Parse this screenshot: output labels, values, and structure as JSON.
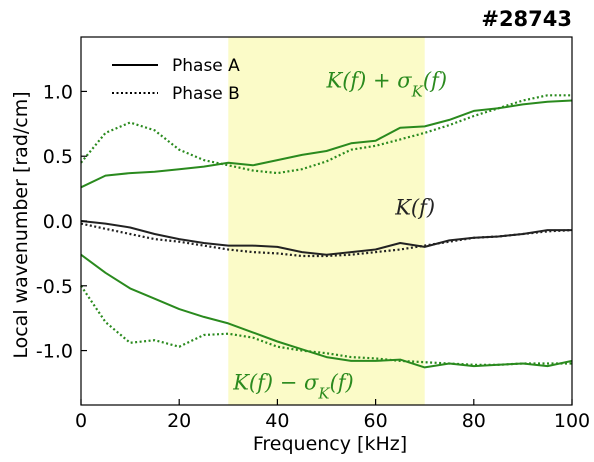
{
  "chart_data": {
    "type": "line",
    "title": "#28743",
    "xlabel": "Frequency [kHz]",
    "ylabel": "Local wavenumber [rad/cm]",
    "xlim": [
      0,
      100
    ],
    "ylim": [
      -1.42,
      1.42
    ],
    "xticks": [
      0,
      20,
      40,
      60,
      80,
      100
    ],
    "xtick_labels": [
      "0",
      "20",
      "40",
      "60",
      "80",
      "100"
    ],
    "yticks": [
      1.0,
      0.5,
      0.0,
      -0.5,
      -1.0
    ],
    "ytick_labels": [
      "1.0",
      "0.5",
      "0.0",
      "-0.5",
      "-1.0"
    ],
    "grid": false,
    "legend_position": "top-left",
    "legend": [
      {
        "label": "Phase A",
        "style": "solid"
      },
      {
        "label": "Phase B",
        "style": "dotted"
      }
    ],
    "highlight_band": {
      "x_start": 30,
      "x_end": 70,
      "color": "#fbfbc8"
    },
    "annotations": [
      {
        "text": "K(f) + σK(f)",
        "color": "#2a8a1e",
        "at_x": 50,
        "at_y": 1.03
      },
      {
        "text": "K(f)",
        "color": "#222222",
        "at_x": 64,
        "at_y": 0.05
      },
      {
        "text": "K(f) − σK(f)",
        "color": "#2a8a1e",
        "at_x": 31,
        "at_y": -1.3
      }
    ],
    "x": [
      0,
      5,
      10,
      15,
      20,
      25,
      30,
      35,
      40,
      45,
      50,
      55,
      60,
      65,
      70,
      75,
      80,
      85,
      90,
      95,
      100
    ],
    "series": [
      {
        "label_ref": "K(f)",
        "phase": "A",
        "color": "#222222",
        "style": "solid",
        "values": [
          0.0,
          -0.02,
          -0.05,
          -0.1,
          -0.14,
          -0.17,
          -0.19,
          -0.19,
          -0.2,
          -0.24,
          -0.26,
          -0.24,
          -0.22,
          -0.17,
          -0.2,
          -0.15,
          -0.13,
          -0.12,
          -0.1,
          -0.07,
          -0.07
        ]
      },
      {
        "label_ref": "K(f)",
        "phase": "B",
        "color": "#222222",
        "style": "dotted",
        "values": [
          -0.02,
          -0.06,
          -0.1,
          -0.14,
          -0.16,
          -0.19,
          -0.22,
          -0.24,
          -0.25,
          -0.27,
          -0.27,
          -0.26,
          -0.24,
          -0.22,
          -0.19,
          -0.16,
          -0.13,
          -0.12,
          -0.1,
          -0.08,
          -0.07
        ]
      },
      {
        "label_ref": "K(f) + σK(f)",
        "phase": "A",
        "color": "#2a8a1e",
        "style": "solid",
        "values": [
          0.26,
          0.35,
          0.37,
          0.38,
          0.4,
          0.42,
          0.45,
          0.43,
          0.47,
          0.51,
          0.54,
          0.6,
          0.62,
          0.72,
          0.73,
          0.78,
          0.85,
          0.87,
          0.9,
          0.92,
          0.93
        ]
      },
      {
        "label_ref": "K(f) + σK(f)",
        "phase": "B",
        "color": "#2a8a1e",
        "style": "dotted",
        "values": [
          0.45,
          0.68,
          0.76,
          0.7,
          0.55,
          0.47,
          0.43,
          0.39,
          0.37,
          0.4,
          0.46,
          0.55,
          0.58,
          0.63,
          0.68,
          0.74,
          0.81,
          0.87,
          0.93,
          0.97,
          0.97
        ]
      },
      {
        "label_ref": "K(f) − σK(f)",
        "phase": "A",
        "color": "#2a8a1e",
        "style": "solid",
        "values": [
          -0.26,
          -0.4,
          -0.52,
          -0.6,
          -0.68,
          -0.74,
          -0.79,
          -0.86,
          -0.93,
          -0.99,
          -1.05,
          -1.08,
          -1.08,
          -1.07,
          -1.13,
          -1.1,
          -1.12,
          -1.11,
          -1.1,
          -1.12,
          -1.08
        ]
      },
      {
        "label_ref": "K(f) − σK(f)",
        "phase": "B",
        "color": "#2a8a1e",
        "style": "dotted",
        "values": [
          -0.5,
          -0.78,
          -0.94,
          -0.92,
          -0.97,
          -0.88,
          -0.87,
          -0.9,
          -0.97,
          -1.0,
          -1.02,
          -1.05,
          -1.06,
          -1.08,
          -1.09,
          -1.1,
          -1.11,
          -1.11,
          -1.1,
          -1.1,
          -1.1
        ]
      }
    ]
  }
}
